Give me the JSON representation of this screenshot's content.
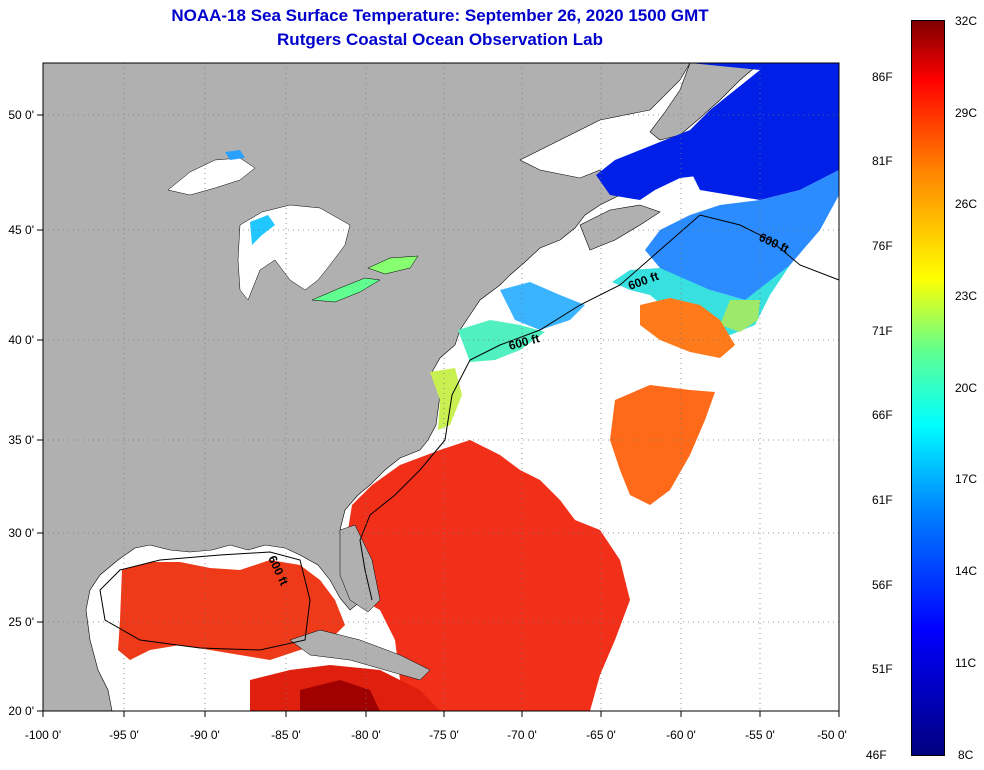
{
  "header": {
    "title": "NOAA-18 Sea Surface Temperature:  September 26, 2020 1500 GMT",
    "subtitle": "Rutgers Coastal Ocean Observation Lab"
  },
  "map": {
    "lon_labels": [
      "-100 0'",
      "-95 0'",
      "-90 0'",
      "-85 0'",
      "-80 0'",
      "-75 0'",
      "-70 0'",
      "-65 0'",
      "-60 0'",
      "-55 0'",
      "-50 0'"
    ],
    "lat_labels": [
      "20 0'",
      "25 0'",
      "30 0'",
      "35 0'",
      "40 0'",
      "45 0'",
      "50 0'"
    ],
    "contour_label": "600 ft",
    "colors": {
      "land": "#b0b0b0",
      "no_data": "#ffffff",
      "grid": "#777777"
    }
  },
  "colorbar": {
    "fahrenheit": [
      "86F",
      "81F",
      "76F",
      "71F",
      "66F",
      "61F",
      "56F",
      "51F",
      "46F"
    ],
    "celsius": [
      "32C",
      "29C",
      "26C",
      "23C",
      "20C",
      "17C",
      "14C",
      "11C",
      "8C"
    ]
  }
}
